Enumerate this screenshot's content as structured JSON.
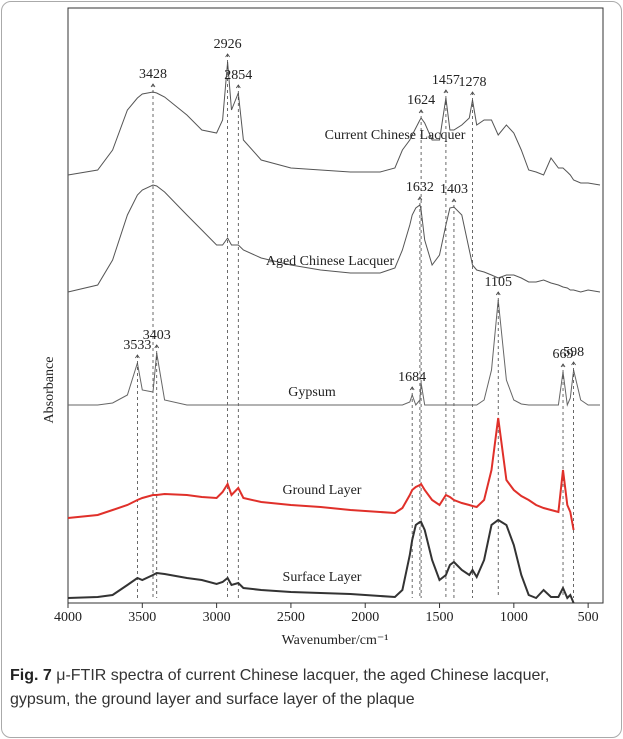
{
  "chart_data": {
    "type": "line",
    "x_label": "Wavenumber/cm⁻¹",
    "y_label": "Absorbance",
    "xlim": [
      4000,
      400
    ],
    "xticks": [
      4000,
      3500,
      3000,
      2500,
      2000,
      1500,
      1000,
      500
    ],
    "ylim": [
      0,
      595
    ],
    "x": [
      4000,
      3800,
      3700,
      3600,
      3533,
      3500,
      3428,
      3403,
      3350,
      3200,
      3100,
      3000,
      2960,
      2926,
      2900,
      2854,
      2820,
      2700,
      2500,
      2300,
      2100,
      1900,
      1800,
      1750,
      1700,
      1684,
      1660,
      1632,
      1624,
      1600,
      1550,
      1500,
      1457,
      1430,
      1403,
      1350,
      1300,
      1278,
      1250,
      1200,
      1150,
      1105,
      1050,
      1000,
      950,
      900,
      850,
      800,
      750,
      700,
      669,
      640,
      620,
      598,
      550,
      500,
      420
    ],
    "series": [
      {
        "name": "Current Chinese Lacquer",
        "color": "#555555",
        "peaks": [
          3428,
          2926,
          2854,
          1624,
          1457,
          1278
        ],
        "values": [
          428,
          433,
          453,
          493,
          505,
          509,
          511,
          510,
          506,
          488,
          473,
          470,
          483,
          541,
          493,
          510,
          463,
          443,
          435,
          433,
          431,
          431,
          435,
          453,
          463,
          468,
          475,
          483,
          485,
          480,
          463,
          463,
          505,
          473,
          473,
          478,
          485,
          503,
          478,
          483,
          483,
          468,
          478,
          470,
          453,
          433,
          431,
          428,
          445,
          435,
          435,
          431,
          428,
          423,
          420,
          420,
          418
        ]
      },
      {
        "name": "Aged Chinese Lacquer",
        "color": "#555555",
        "peaks": [
          1632,
          1403
        ],
        "values": [
          311,
          318,
          343,
          388,
          408,
          413,
          418,
          417,
          411,
          388,
          373,
          358,
          358,
          365,
          358,
          358,
          353,
          345,
          338,
          333,
          330,
          330,
          335,
          353,
          378,
          388,
          395,
          398,
          393,
          363,
          338,
          348,
          378,
          395,
          396,
          388,
          353,
          338,
          333,
          331,
          328,
          325,
          328,
          328,
          325,
          321,
          321,
          323,
          320,
          318,
          316,
          315,
          313,
          313,
          311,
          313,
          311
        ]
      },
      {
        "name": "Gypsum",
        "color": "#666666",
        "peaks": [
          3533,
          3403,
          1684,
          1105,
          669,
          598
        ],
        "values": [
          198,
          198,
          200,
          208,
          240,
          213,
          211,
          250,
          203,
          198,
          198,
          198,
          198,
          198,
          198,
          198,
          198,
          198,
          198,
          198,
          198,
          198,
          198,
          198,
          201,
          208,
          198,
          203,
          220,
          198,
          198,
          198,
          198,
          198,
          198,
          198,
          198,
          198,
          198,
          203,
          233,
          303,
          223,
          203,
          199,
          198,
          198,
          198,
          198,
          198,
          231,
          198,
          205,
          233,
          203,
          198,
          198
        ]
      },
      {
        "name": "Ground Layer",
        "color": "#e0302a",
        "peaks": [],
        "values": [
          85,
          88,
          93,
          98,
          103,
          105,
          108,
          108,
          109,
          108,
          106,
          105,
          111,
          119,
          108,
          115,
          105,
          101,
          98,
          96,
          93,
          91,
          90,
          95,
          108,
          113,
          116,
          118,
          119,
          113,
          103,
          98,
          108,
          106,
          103,
          100,
          98,
          97,
          96,
          103,
          133,
          185,
          123,
          113,
          107,
          103,
          98,
          95,
          93,
          91,
          133,
          98,
          91,
          73,
          null,
          null,
          null
        ]
      },
      {
        "name": "Surface Layer",
        "color": "#333333",
        "peaks": [],
        "values": [
          5,
          6,
          8,
          18,
          25,
          23,
          28,
          30,
          29,
          25,
          23,
          19,
          21,
          25,
          18,
          20,
          15,
          13,
          11,
          10,
          9,
          7,
          6,
          13,
          48,
          63,
          78,
          81,
          81,
          73,
          43,
          23,
          28,
          38,
          41,
          33,
          28,
          33,
          26,
          43,
          78,
          83,
          78,
          58,
          28,
          8,
          5,
          13,
          6,
          6,
          15,
          5,
          8,
          0,
          null,
          null,
          null
        ]
      }
    ]
  },
  "caption": {
    "label": "Fig. 7",
    "text": "μ-FTIR spectra of current Chinese lacquer, the aged Chinese lacquer, gypsum, the ground layer and surface layer of the plaque"
  }
}
